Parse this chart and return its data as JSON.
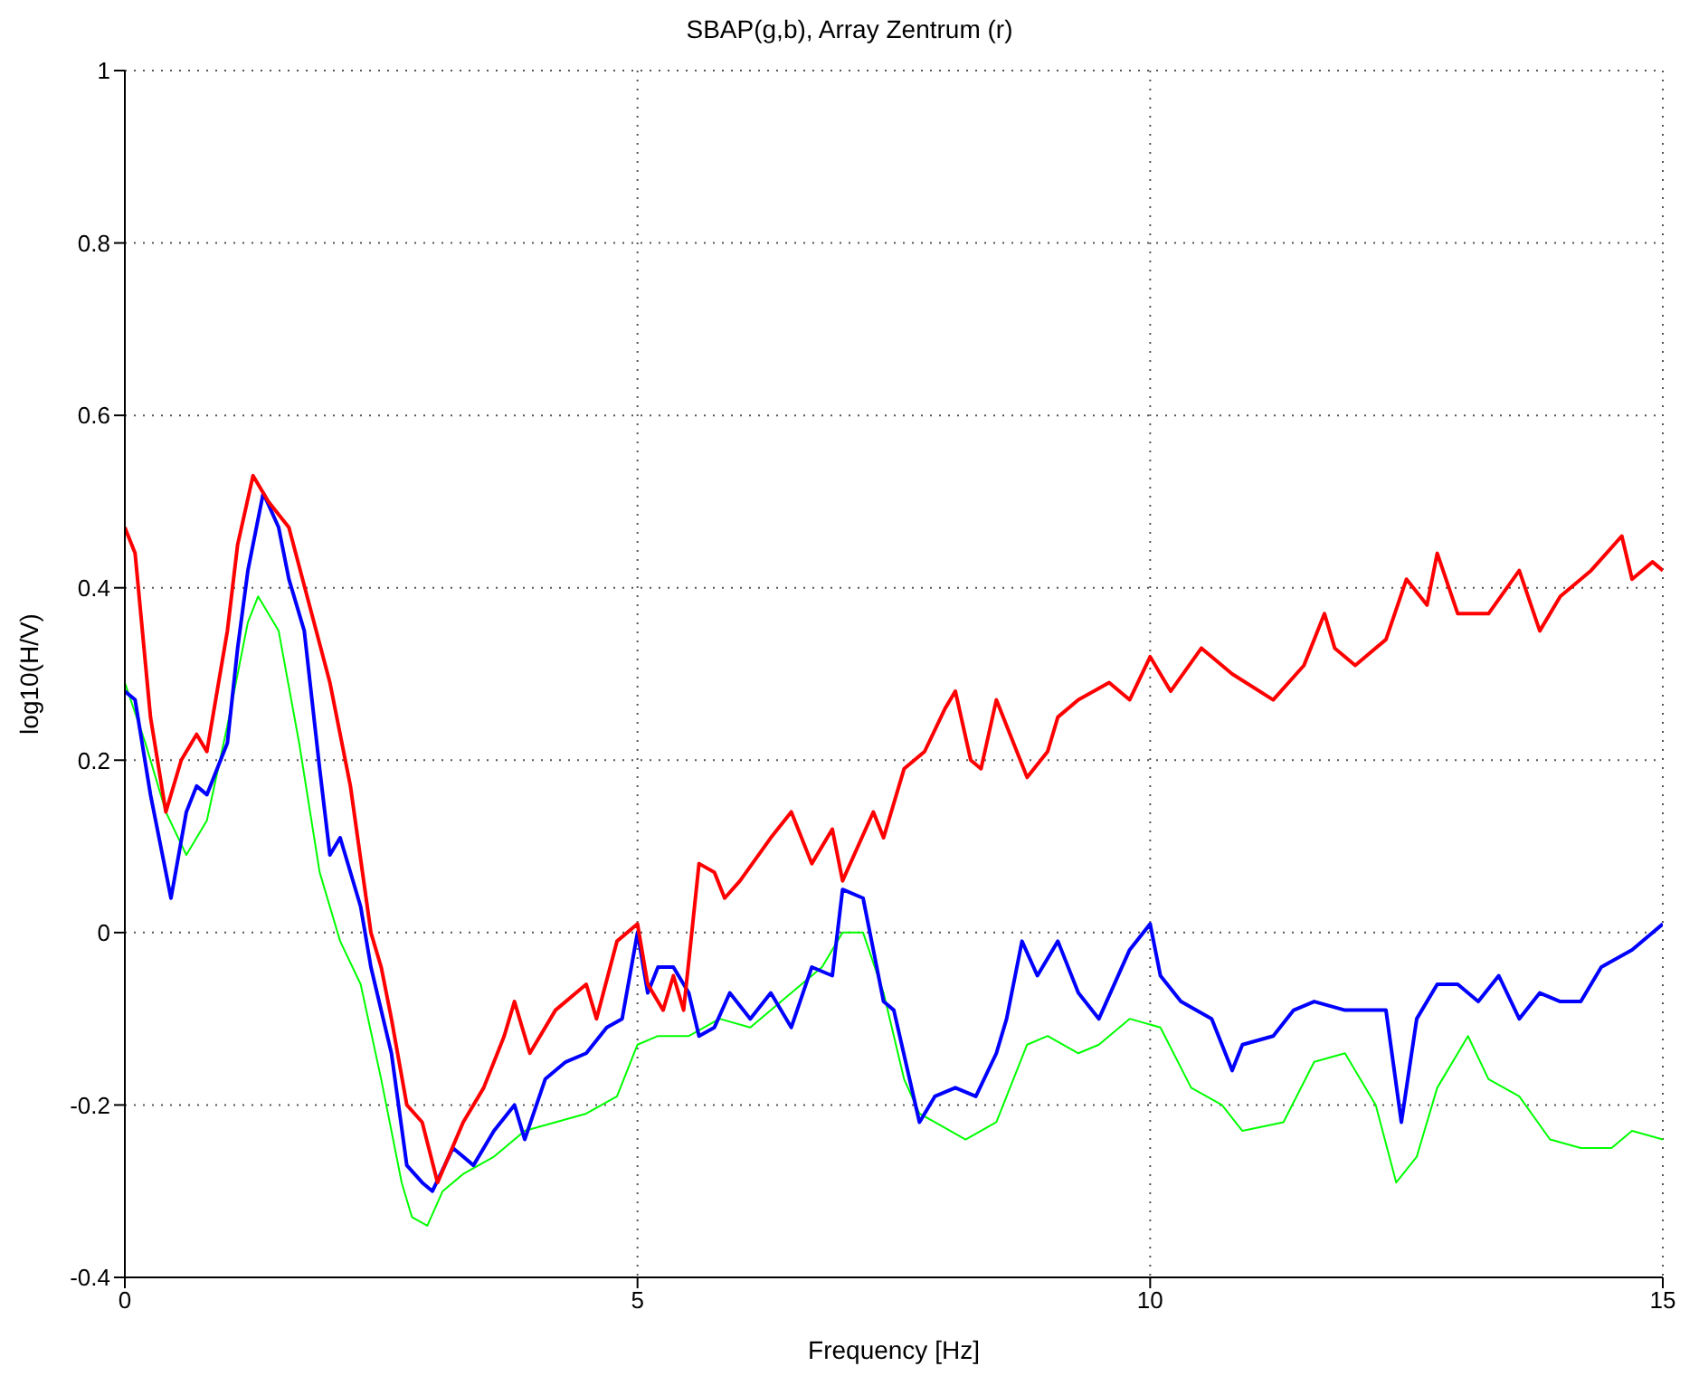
{
  "chart_data": {
    "type": "line",
    "title": "SBAP(g,b), Array Zentrum (r)",
    "xlabel": "Frequency [Hz]",
    "ylabel": "log10(H/V)",
    "xlim": [
      0,
      15
    ],
    "xticks": [
      0,
      5,
      10,
      15
    ],
    "ylim": [
      -0.4,
      1
    ],
    "yticks": [
      -0.4,
      -0.2,
      0,
      0.2,
      0.4,
      0.6,
      0.8,
      1
    ],
    "grid": true,
    "marker": "none",
    "line_style": "solid",
    "series": [
      {
        "color": "#00ff00",
        "x": [
          0,
          0.2,
          0.4,
          0.6,
          0.8,
          1.0,
          1.2,
          1.3,
          1.5,
          1.7,
          1.9,
          2.1,
          2.3,
          2.5,
          2.7,
          2.8,
          2.95,
          3.1,
          3.3,
          3.6,
          3.9,
          4.2,
          4.5,
          4.8,
          5.0,
          5.2,
          5.5,
          5.8,
          6.1,
          6.5,
          6.8,
          7.0,
          7.2,
          7.4,
          7.6,
          7.75,
          7.9,
          8.2,
          8.5,
          8.8,
          9.0,
          9.3,
          9.5,
          9.8,
          10.1,
          10.4,
          10.7,
          10.9,
          11.3,
          11.6,
          11.9,
          12.2,
          12.4,
          12.6,
          12.8,
          13.1,
          13.3,
          13.6,
          13.9,
          14.2,
          14.5,
          14.7,
          15.0
        ],
        "values": [
          0.29,
          0.22,
          0.14,
          0.09,
          0.13,
          0.24,
          0.36,
          0.39,
          0.35,
          0.22,
          0.07,
          -0.01,
          -0.06,
          -0.17,
          -0.29,
          -0.33,
          -0.34,
          -0.3,
          -0.28,
          -0.26,
          -0.23,
          -0.22,
          -0.21,
          -0.19,
          -0.13,
          -0.12,
          -0.12,
          -0.1,
          -0.11,
          -0.07,
          -0.04,
          0.0,
          0.0,
          -0.07,
          -0.17,
          -0.21,
          -0.22,
          -0.24,
          -0.22,
          -0.13,
          -0.12,
          -0.14,
          -0.13,
          -0.1,
          -0.11,
          -0.18,
          -0.2,
          -0.23,
          -0.22,
          -0.15,
          -0.14,
          -0.2,
          -0.29,
          -0.26,
          -0.18,
          -0.12,
          -0.17,
          -0.19,
          -0.24,
          -0.25,
          -0.25,
          -0.23,
          -0.24
        ]
      },
      {
        "color": "#0000ff",
        "x": [
          0,
          0.1,
          0.25,
          0.4,
          0.45,
          0.6,
          0.7,
          0.8,
          1.0,
          1.1,
          1.2,
          1.35,
          1.5,
          1.6,
          1.75,
          1.9,
          2.0,
          2.1,
          2.3,
          2.4,
          2.6,
          2.75,
          2.9,
          3.0,
          3.2,
          3.4,
          3.6,
          3.8,
          3.9,
          4.1,
          4.3,
          4.5,
          4.7,
          4.85,
          5.0,
          5.1,
          5.2,
          5.35,
          5.5,
          5.6,
          5.75,
          5.9,
          6.1,
          6.3,
          6.5,
          6.7,
          6.9,
          7.0,
          7.2,
          7.4,
          7.5,
          7.75,
          7.9,
          8.1,
          8.3,
          8.5,
          8.6,
          8.75,
          8.9,
          9.1,
          9.3,
          9.5,
          9.8,
          10.0,
          10.1,
          10.3,
          10.6,
          10.8,
          10.9,
          11.2,
          11.4,
          11.6,
          11.9,
          12.1,
          12.3,
          12.45,
          12.6,
          12.8,
          13.0,
          13.2,
          13.4,
          13.6,
          13.8,
          14.0,
          14.2,
          14.4,
          14.7,
          15.0
        ],
        "values": [
          0.28,
          0.27,
          0.16,
          0.07,
          0.04,
          0.14,
          0.17,
          0.16,
          0.22,
          0.33,
          0.42,
          0.51,
          0.47,
          0.41,
          0.35,
          0.19,
          0.09,
          0.11,
          0.03,
          -0.04,
          -0.14,
          -0.27,
          -0.29,
          -0.3,
          -0.25,
          -0.27,
          -0.23,
          -0.2,
          -0.24,
          -0.17,
          -0.15,
          -0.14,
          -0.11,
          -0.1,
          0.0,
          -0.07,
          -0.04,
          -0.04,
          -0.07,
          -0.12,
          -0.11,
          -0.07,
          -0.1,
          -0.07,
          -0.11,
          -0.04,
          -0.05,
          0.05,
          0.04,
          -0.08,
          -0.09,
          -0.22,
          -0.19,
          -0.18,
          -0.19,
          -0.14,
          -0.1,
          -0.01,
          -0.05,
          -0.01,
          -0.07,
          -0.1,
          -0.02,
          0.01,
          -0.05,
          -0.08,
          -0.1,
          -0.16,
          -0.13,
          -0.12,
          -0.09,
          -0.08,
          -0.09,
          -0.09,
          -0.09,
          -0.22,
          -0.1,
          -0.06,
          -0.06,
          -0.08,
          -0.05,
          -0.1,
          -0.07,
          -0.08,
          -0.08,
          -0.04,
          -0.02,
          0.01
        ]
      },
      {
        "color": "#ff0000",
        "x": [
          0,
          0.1,
          0.25,
          0.4,
          0.55,
          0.7,
          0.8,
          0.9,
          1.0,
          1.1,
          1.25,
          1.4,
          1.6,
          1.8,
          2.0,
          2.2,
          2.4,
          2.5,
          2.6,
          2.75,
          2.9,
          3.05,
          3.3,
          3.5,
          3.7,
          3.8,
          3.95,
          4.2,
          4.5,
          4.6,
          4.8,
          5.0,
          5.1,
          5.25,
          5.35,
          5.45,
          5.6,
          5.75,
          5.85,
          6.0,
          6.3,
          6.5,
          6.7,
          6.9,
          7.0,
          7.3,
          7.4,
          7.6,
          7.8,
          8.0,
          8.1,
          8.25,
          8.35,
          8.5,
          8.7,
          8.8,
          9.0,
          9.1,
          9.3,
          9.6,
          9.8,
          10.0,
          10.2,
          10.5,
          10.8,
          11.2,
          11.5,
          11.7,
          11.8,
          12.0,
          12.3,
          12.5,
          12.7,
          12.8,
          13.0,
          13.3,
          13.6,
          13.8,
          14.0,
          14.3,
          14.6,
          14.7,
          14.9,
          15.0
        ],
        "values": [
          0.47,
          0.44,
          0.25,
          0.14,
          0.2,
          0.23,
          0.21,
          0.28,
          0.35,
          0.45,
          0.53,
          0.5,
          0.47,
          0.38,
          0.29,
          0.17,
          0.0,
          -0.04,
          -0.1,
          -0.2,
          -0.22,
          -0.29,
          -0.22,
          -0.18,
          -0.12,
          -0.08,
          -0.14,
          -0.09,
          -0.06,
          -0.1,
          -0.01,
          0.01,
          -0.06,
          -0.09,
          -0.05,
          -0.09,
          0.08,
          0.07,
          0.04,
          0.06,
          0.11,
          0.14,
          0.08,
          0.12,
          0.06,
          0.14,
          0.11,
          0.19,
          0.21,
          0.26,
          0.28,
          0.2,
          0.19,
          0.27,
          0.21,
          0.18,
          0.21,
          0.25,
          0.27,
          0.29,
          0.27,
          0.32,
          0.28,
          0.33,
          0.3,
          0.27,
          0.31,
          0.37,
          0.33,
          0.31,
          0.34,
          0.41,
          0.38,
          0.44,
          0.37,
          0.37,
          0.42,
          0.35,
          0.39,
          0.42,
          0.46,
          0.41,
          0.43,
          0.42
        ]
      }
    ]
  }
}
